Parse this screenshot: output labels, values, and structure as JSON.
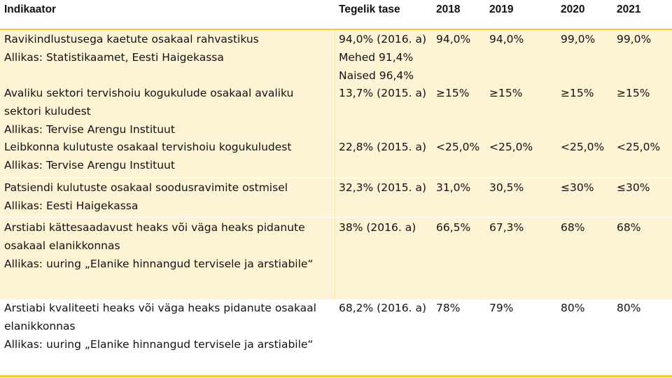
{
  "colors": {
    "accent": "#f5c73a",
    "shaded_row": "#fdf3d5"
  },
  "headers": {
    "indikaator": "Indikaator",
    "tegelik_tase": "Tegelik tase",
    "y2018": "2018",
    "y2019": "2019",
    "y2020": "2020",
    "y2021": "2021"
  },
  "rows": [
    {
      "indicator": "Ravikindlustusega kaetute osakaal rahvastikus",
      "source": "Allikas: Statistikaamet, Eesti Haigekassa",
      "tase": [
        "94,0% (2016. a)",
        "Mehed 91,4%",
        "Naised 96,4%"
      ],
      "y2018": "94,0%",
      "y2019": "94,0%",
      "y2020": "99,0%",
      "y2021": "99,0%"
    },
    {
      "indicator_line1": "Avaliku sektori tervishoiu kogukulude osakaal avaliku",
      "indicator_line2": "sektori kuludest",
      "source": "Allikas: Tervise Arengu Instituut",
      "tase": "13,7% (2015. a)",
      "y2018": "≥15%",
      "y2019": "≥15%",
      "y2020": "≥15%",
      "y2021": "≥15%"
    },
    {
      "indicator": "Leibkonna kulutuste osakaal tervishoiu kogukuludest",
      "source": "Allikas: Tervise Arengu Instituut",
      "tase": "22,8% (2015. a)",
      "y2018": "<25,0%",
      "y2019": "<25,0%",
      "y2020": "<25,0%",
      "y2021": "<25,0%"
    },
    {
      "indicator": "Patsiendi kulutuste osakaal soodusravimite ostmisel",
      "source": "Allikas: Eesti Haigekassa",
      "tase": "32,3% (2015. a)",
      "y2018": "31,0%",
      "y2019": "30,5%",
      "y2020": "≤30%",
      "y2021": "≤30%"
    },
    {
      "indicator_line1": "Arstiabi kättesaadavust heaks või väga heaks pidanute",
      "indicator_line2": "osakaal elanikkonnas",
      "source": "Allikas: uuring „Elanike hinnangud tervisele ja arstiabile“",
      "tase": "38% (2016. a)",
      "y2018": "66,5%",
      "y2019": "67,3%",
      "y2020": "68%",
      "y2021": "68%"
    },
    {
      "indicator_line1": "Arstiabi kvaliteeti heaks või väga heaks pidanute osakaal",
      "indicator_line2": "elanikkonnas",
      "source": "Allikas: uuring „Elanike hinnangud tervisele ja arstiabile“",
      "tase": "68,2% (2016. a)",
      "y2018": "78%",
      "y2019": "79%",
      "y2020": "80%",
      "y2021": "80%"
    }
  ]
}
